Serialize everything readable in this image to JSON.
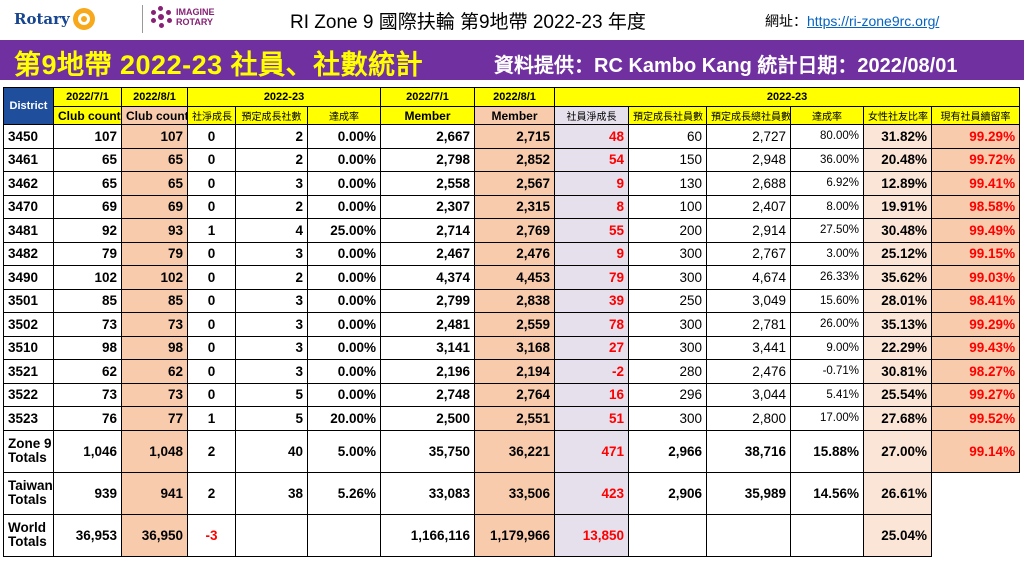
{
  "header": {
    "rotary_brand": "Rotary",
    "imagine_line1": "IMAGINE",
    "imagine_line2": "ROTARY",
    "title": "RI Zone 9 國際扶輪 第9地帶 2022-23 年度",
    "url_label": "網址：",
    "url": "https://ri-zone9rc.org/"
  },
  "banner": {
    "title": "第9地帶 2022-23 社員、社數統計",
    "source": "資料提供：RC Kambo Kang  統計日期：2022/08/01"
  },
  "colors": {
    "banner": "#7030a0",
    "banner_title": "#ffff00",
    "header_yellow": "#ffff00",
    "header_blue": "#1f4e9c",
    "orange_col": "#f8cbad",
    "lavender_col": "#e6e0ec",
    "red_text": "#ff0000"
  },
  "table": {
    "headers_top": {
      "district": "District",
      "club_2022_7_1": "2022/7/1",
      "club_2022_8_1": "2022/8/1",
      "club_group": "2022-23",
      "member_2022_7_1": "2022/7/1",
      "member_2022_8_1": "2022/8/1",
      "member_group": "2022-23"
    },
    "headers_sub": [
      "Club count",
      "Club count",
      "社淨成長",
      "預定成長社數",
      "達成率",
      "Member",
      "Member",
      "社員淨成長",
      "預定成長社員數",
      "預定成長總社員數",
      "達成率",
      "女性社友比率",
      "現有社員續留率"
    ],
    "rows": [
      [
        "3450",
        "107",
        "107",
        "0",
        "2",
        "0.00%",
        "2,667",
        "2,715",
        "48",
        "60",
        "2,727",
        "80.00%",
        "31.82%",
        "99.29%"
      ],
      [
        "3461",
        "65",
        "65",
        "0",
        "2",
        "0.00%",
        "2,798",
        "2,852",
        "54",
        "150",
        "2,948",
        "36.00%",
        "20.48%",
        "99.72%"
      ],
      [
        "3462",
        "65",
        "65",
        "0",
        "3",
        "0.00%",
        "2,558",
        "2,567",
        "9",
        "130",
        "2,688",
        "6.92%",
        "12.89%",
        "99.41%"
      ],
      [
        "3470",
        "69",
        "69",
        "0",
        "2",
        "0.00%",
        "2,307",
        "2,315",
        "8",
        "100",
        "2,407",
        "8.00%",
        "19.91%",
        "98.58%"
      ],
      [
        "3481",
        "92",
        "93",
        "1",
        "4",
        "25.00%",
        "2,714",
        "2,769",
        "55",
        "200",
        "2,914",
        "27.50%",
        "30.48%",
        "99.49%"
      ],
      [
        "3482",
        "79",
        "79",
        "0",
        "3",
        "0.00%",
        "2,467",
        "2,476",
        "9",
        "300",
        "2,767",
        "3.00%",
        "25.12%",
        "99.15%"
      ],
      [
        "3490",
        "102",
        "102",
        "0",
        "2",
        "0.00%",
        "4,374",
        "4,453",
        "79",
        "300",
        "4,674",
        "26.33%",
        "35.62%",
        "99.03%"
      ],
      [
        "3501",
        "85",
        "85",
        "0",
        "3",
        "0.00%",
        "2,799",
        "2,838",
        "39",
        "250",
        "3,049",
        "15.60%",
        "28.01%",
        "98.41%"
      ],
      [
        "3502",
        "73",
        "73",
        "0",
        "3",
        "0.00%",
        "2,481",
        "2,559",
        "78",
        "300",
        "2,781",
        "26.00%",
        "35.13%",
        "99.29%"
      ],
      [
        "3510",
        "98",
        "98",
        "0",
        "3",
        "0.00%",
        "3,141",
        "3,168",
        "27",
        "300",
        "3,441",
        "9.00%",
        "22.29%",
        "99.43%"
      ],
      [
        "3521",
        "62",
        "62",
        "0",
        "3",
        "0.00%",
        "2,196",
        "2,194",
        "-2",
        "280",
        "2,476",
        "-0.71%",
        "30.81%",
        "98.27%"
      ],
      [
        "3522",
        "73",
        "73",
        "0",
        "5",
        "0.00%",
        "2,748",
        "2,764",
        "16",
        "296",
        "3,044",
        "5.41%",
        "25.54%",
        "99.27%"
      ],
      [
        "3523",
        "76",
        "77",
        "1",
        "5",
        "20.00%",
        "2,500",
        "2,551",
        "51",
        "300",
        "2,800",
        "17.00%",
        "27.68%",
        "99.52%"
      ]
    ],
    "totals": [
      {
        "label1": "Zone 9",
        "label2": "Totals",
        "values": [
          "1,046",
          "1,048",
          "2",
          "40",
          "5.00%",
          "35,750",
          "36,221",
          "471",
          "2,966",
          "38,716",
          "15.88%",
          "27.00%",
          "99.14%"
        ]
      },
      {
        "label1": "Taiwan",
        "label2": "Totals",
        "values": [
          "939",
          "941",
          "2",
          "38",
          "5.26%",
          "33,083",
          "33,506",
          "423",
          "2,906",
          "35,989",
          "14.56%",
          "26.61%",
          ""
        ]
      },
      {
        "label1": "World",
        "label2": "Totals",
        "values": [
          "36,953",
          "36,950",
          "-3",
          "",
          "",
          "1,166,116",
          "1,179,966",
          "13,850",
          "",
          "",
          "",
          "25.04%",
          ""
        ]
      }
    ]
  }
}
